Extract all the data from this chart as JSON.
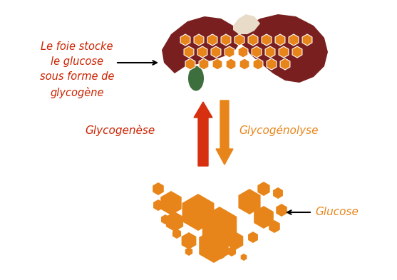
{
  "bg_color": "#ffffff",
  "liver_color": "#7a1f1f",
  "liver_shadow": "#6b1a1a",
  "gallbladder_color": "#3d6e3d",
  "glycogen_color": "#e8851a",
  "glucose_color": "#e8851a",
  "arrow_up_color": "#d63010",
  "arrow_down_color": "#e8851a",
  "text_foie_color": "#cc2200",
  "text_glycogenese_color": "#cc2200",
  "text_glycogenolyse_color": "#e8851a",
  "text_glucose_color": "#e8851a",
  "highlight_color": "#e8dcc8",
  "label_foie": "Le foie stocke\nle glucose\nsous forme de\nglycogène",
  "label_glycogenese": "Glycogenèse",
  "label_glycogenolyse": "Glycogénolyse",
  "label_glucose": "Glucose",
  "figsize": [
    5.57,
    3.93
  ],
  "dpi": 100
}
